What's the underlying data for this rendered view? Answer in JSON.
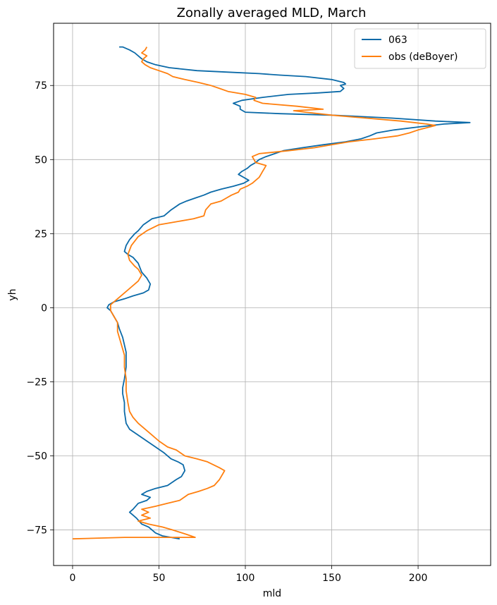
{
  "chart_data": {
    "type": "line",
    "title": "Zonally averaged MLD, March",
    "xlabel": "mld",
    "ylabel": "yh",
    "xlim": [
      -11,
      242
    ],
    "ylim": [
      -87,
      96
    ],
    "xticks": [
      0,
      50,
      100,
      150,
      200
    ],
    "yticks": [
      -75,
      -50,
      -25,
      0,
      25,
      50,
      75
    ],
    "xtick_labels": [
      "0",
      "50",
      "100",
      "150",
      "200"
    ],
    "ytick_labels": [
      "−75",
      "−50",
      "−25",
      "0",
      "25",
      "50",
      "75"
    ],
    "grid": true,
    "legend": {
      "position": "top-right"
    },
    "series": [
      {
        "name": "063",
        "color": "#0b6aa8",
        "points": [
          [
            62,
            -78
          ],
          [
            52,
            -77
          ],
          [
            48,
            -76
          ],
          [
            44,
            -74
          ],
          [
            40,
            -73
          ],
          [
            37,
            -71
          ],
          [
            35,
            -70
          ],
          [
            33,
            -69
          ],
          [
            35,
            -68
          ],
          [
            38,
            -66
          ],
          [
            43,
            -65
          ],
          [
            45,
            -64
          ],
          [
            40,
            -63
          ],
          [
            43,
            -62
          ],
          [
            48,
            -61
          ],
          [
            55,
            -60
          ],
          [
            60,
            -58
          ],
          [
            63,
            -57
          ],
          [
            65,
            -55
          ],
          [
            64,
            -53
          ],
          [
            61,
            -52
          ],
          [
            57,
            -51
          ],
          [
            53,
            -49
          ],
          [
            48,
            -47
          ],
          [
            43,
            -45
          ],
          [
            38,
            -43
          ],
          [
            33,
            -41
          ],
          [
            31,
            -39
          ],
          [
            30,
            -35
          ],
          [
            30,
            -32
          ],
          [
            29,
            -29
          ],
          [
            29,
            -27
          ],
          [
            30,
            -24
          ],
          [
            31,
            -20
          ],
          [
            31,
            -15
          ],
          [
            29,
            -10
          ],
          [
            27,
            -7
          ],
          [
            26,
            -5
          ],
          [
            24,
            -3
          ],
          [
            22,
            -1
          ],
          [
            20,
            0
          ],
          [
            21,
            1
          ],
          [
            24,
            2
          ],
          [
            30,
            3
          ],
          [
            35,
            4
          ],
          [
            41,
            5
          ],
          [
            44,
            6
          ],
          [
            45,
            8
          ],
          [
            43,
            10
          ],
          [
            40,
            12
          ],
          [
            38,
            15
          ],
          [
            35,
            17
          ],
          [
            32,
            18
          ],
          [
            30,
            19
          ],
          [
            31,
            21
          ],
          [
            33,
            23
          ],
          [
            36,
            25
          ],
          [
            38,
            26
          ],
          [
            41,
            28
          ],
          [
            46,
            30
          ],
          [
            53,
            31
          ],
          [
            57,
            33
          ],
          [
            62,
            35
          ],
          [
            66,
            36
          ],
          [
            71,
            37
          ],
          [
            76,
            38
          ],
          [
            80,
            39
          ],
          [
            86,
            40
          ],
          [
            93,
            41
          ],
          [
            99,
            42
          ],
          [
            102,
            43
          ],
          [
            99,
            44
          ],
          [
            96,
            45
          ],
          [
            98,
            46
          ],
          [
            101,
            47
          ],
          [
            103,
            48
          ],
          [
            106,
            49
          ],
          [
            108,
            50
          ],
          [
            112,
            51
          ],
          [
            117,
            52
          ],
          [
            122,
            53
          ],
          [
            133,
            54
          ],
          [
            145,
            55
          ],
          [
            158,
            56
          ],
          [
            167,
            57
          ],
          [
            172,
            58
          ],
          [
            176,
            59
          ],
          [
            186,
            60
          ],
          [
            200,
            61
          ],
          [
            215,
            62
          ],
          [
            230,
            62.5
          ],
          [
            210,
            63
          ],
          [
            185,
            64
          ],
          [
            150,
            65
          ],
          [
            120,
            65.5
          ],
          [
            100,
            66
          ],
          [
            97,
            67
          ],
          [
            97,
            68
          ],
          [
            93,
            69
          ],
          [
            98,
            70
          ],
          [
            110,
            71
          ],
          [
            125,
            72
          ],
          [
            142,
            72.5
          ],
          [
            155,
            73
          ],
          [
            157,
            74
          ],
          [
            155,
            75
          ],
          [
            158,
            75.5
          ],
          [
            157,
            76
          ],
          [
            150,
            77
          ],
          [
            135,
            78
          ],
          [
            120,
            78.5
          ],
          [
            108,
            79
          ],
          [
            90,
            79.5
          ],
          [
            72,
            80
          ],
          [
            56,
            81
          ],
          [
            48,
            82
          ],
          [
            43,
            83
          ],
          [
            40,
            84
          ],
          [
            38,
            85
          ],
          [
            36,
            86
          ],
          [
            33,
            87
          ],
          [
            29,
            88
          ],
          [
            27,
            88
          ]
        ]
      },
      {
        "name": "obs (deBoyer)",
        "color": "#ff7f0e",
        "points": [
          [
            0,
            -78
          ],
          [
            30,
            -77.5
          ],
          [
            50,
            -77.5
          ],
          [
            71,
            -77.5
          ],
          [
            66,
            -76.5
          ],
          [
            58,
            -75
          ],
          [
            52,
            -74
          ],
          [
            44,
            -73
          ],
          [
            38,
            -72
          ],
          [
            45,
            -71
          ],
          [
            40,
            -70
          ],
          [
            44,
            -69
          ],
          [
            40,
            -68
          ],
          [
            48,
            -67
          ],
          [
            55,
            -66
          ],
          [
            62,
            -65
          ],
          [
            67,
            -63
          ],
          [
            73,
            -62
          ],
          [
            78,
            -61
          ],
          [
            82,
            -60
          ],
          [
            85,
            -58
          ],
          [
            87,
            -56
          ],
          [
            88,
            -55
          ],
          [
            85,
            -54
          ],
          [
            78,
            -52
          ],
          [
            72,
            -51
          ],
          [
            65,
            -50
          ],
          [
            60,
            -48
          ],
          [
            55,
            -47
          ],
          [
            50,
            -45
          ],
          [
            46,
            -43
          ],
          [
            42,
            -41
          ],
          [
            38,
            -39
          ],
          [
            35,
            -37
          ],
          [
            33,
            -35
          ],
          [
            32,
            -32
          ],
          [
            31,
            -28
          ],
          [
            31,
            -24
          ],
          [
            30,
            -20
          ],
          [
            30,
            -16
          ],
          [
            28,
            -12
          ],
          [
            26,
            -8
          ],
          [
            26,
            -5
          ],
          [
            24,
            -3
          ],
          [
            22,
            -1
          ],
          [
            22,
            1
          ],
          [
            26,
            3
          ],
          [
            30,
            5
          ],
          [
            34,
            7
          ],
          [
            38,
            9
          ],
          [
            40,
            11
          ],
          [
            38,
            13
          ],
          [
            36,
            14
          ],
          [
            33,
            16
          ],
          [
            32,
            18
          ],
          [
            34,
            21
          ],
          [
            38,
            24
          ],
          [
            43,
            26
          ],
          [
            50,
            28
          ],
          [
            60,
            29
          ],
          [
            70,
            30
          ],
          [
            76,
            31
          ],
          [
            77,
            33
          ],
          [
            80,
            35
          ],
          [
            86,
            36
          ],
          [
            89,
            37
          ],
          [
            92,
            38
          ],
          [
            96,
            39
          ],
          [
            97,
            40
          ],
          [
            101,
            41
          ],
          [
            104,
            42
          ],
          [
            106,
            43
          ],
          [
            108,
            44
          ],
          [
            109,
            45
          ],
          [
            110,
            46
          ],
          [
            111,
            47
          ],
          [
            112,
            48
          ],
          [
            106,
            49
          ],
          [
            105,
            50
          ],
          [
            104,
            51
          ],
          [
            108,
            52
          ],
          [
            125,
            53
          ],
          [
            140,
            54
          ],
          [
            150,
            55
          ],
          [
            160,
            56
          ],
          [
            175,
            57
          ],
          [
            188,
            58
          ],
          [
            195,
            59
          ],
          [
            200,
            60
          ],
          [
            210,
            61.5
          ],
          [
            205,
            62
          ],
          [
            190,
            63
          ],
          [
            170,
            64
          ],
          [
            150,
            65
          ],
          [
            135,
            66
          ],
          [
            128,
            66.5
          ],
          [
            145,
            67
          ],
          [
            130,
            68
          ],
          [
            110,
            69
          ],
          [
            105,
            70
          ],
          [
            106,
            71
          ],
          [
            100,
            72
          ],
          [
            90,
            73
          ],
          [
            85,
            74
          ],
          [
            80,
            75
          ],
          [
            73,
            76
          ],
          [
            65,
            77
          ],
          [
            58,
            78
          ],
          [
            55,
            79
          ],
          [
            50,
            80
          ],
          [
            45,
            81
          ],
          [
            42,
            82
          ],
          [
            40,
            83
          ],
          [
            41,
            84
          ],
          [
            43,
            85
          ],
          [
            40,
            86
          ],
          [
            42,
            87
          ],
          [
            43,
            88
          ]
        ]
      }
    ]
  }
}
